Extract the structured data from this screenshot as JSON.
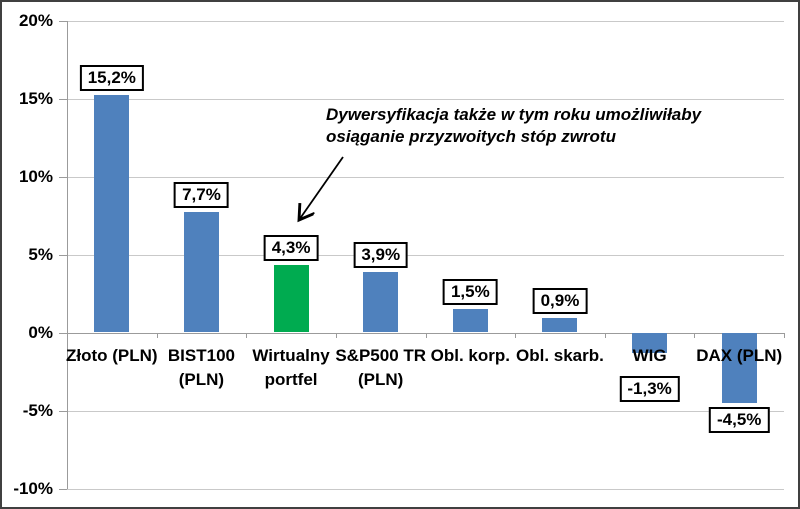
{
  "chart_data": {
    "type": "bar",
    "categories": [
      "Złoto (PLN)",
      "BIST100 (PLN)",
      "Wirtualny portfel",
      "S&P500 TR (PLN)",
      "Obl. korp.",
      "Obl. skarb.",
      "WIG",
      "DAX (PLN)"
    ],
    "category_lines": [
      [
        "Złoto (PLN)"
      ],
      [
        "BIST100",
        "(PLN)"
      ],
      [
        "Wirtualny",
        "portfel"
      ],
      [
        "S&P500 TR",
        "(PLN)"
      ],
      [
        "Obl. korp."
      ],
      [
        "Obl. skarb."
      ],
      [
        "WIG"
      ],
      [
        "DAX (PLN)"
      ]
    ],
    "values": [
      15.2,
      7.7,
      4.3,
      3.9,
      1.5,
      0.9,
      -1.3,
      -4.5
    ],
    "value_labels": [
      "15,2%",
      "7,7%",
      "4,3%",
      "3,9%",
      "1,5%",
      "0,9%",
      "-1,3%",
      "-4,5%"
    ],
    "bar_colors": [
      "#4F81BD",
      "#4F81BD",
      "#00AB50",
      "#4F81BD",
      "#4F81BD",
      "#4F81BD",
      "#4F81BD",
      "#4F81BD"
    ],
    "highlight_index": 2,
    "title": "",
    "xlabel": "",
    "ylabel": "",
    "ylim": [
      -10,
      20
    ],
    "grid": true,
    "legend": "none",
    "y_axis": {
      "min": -10,
      "max": 20,
      "step": 5,
      "ticks": [
        {
          "value": 20,
          "label": "20%"
        },
        {
          "value": 15,
          "label": "15%"
        },
        {
          "value": 10,
          "label": "10%"
        },
        {
          "value": 5,
          "label": "5%"
        },
        {
          "value": 0,
          "label": "0%"
        },
        {
          "value": -5,
          "label": "-5%"
        },
        {
          "value": -10,
          "label": "-10%"
        }
      ]
    },
    "annotation": {
      "lines": [
        "Dywersyfikacja także w tym roku umożliwiłaby",
        "osiąganie przyzwoitych stóp zwrotu"
      ]
    },
    "colors": {
      "bar_blue": "#4F81BD",
      "bar_green": "#00AB50",
      "gridline": "#C9C9C9",
      "axis_line": "#9B9B9B",
      "label_box_border": "#000000",
      "label_box_bg": "#FFFFFF",
      "text": "#000000"
    }
  }
}
